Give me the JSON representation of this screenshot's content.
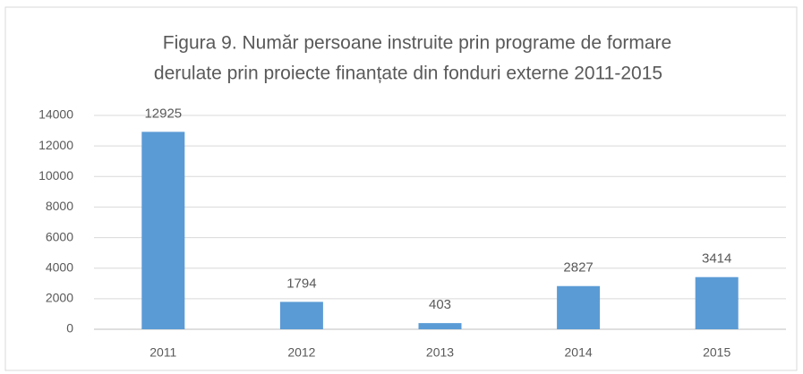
{
  "chart_data": {
    "type": "bar",
    "title": [
      "Figura 9. Număr persoane instruite prin programe de formare",
      "derulate prin proiecte finanțate din fonduri externe 2011-2015"
    ],
    "categories": [
      "2011",
      "2012",
      "2013",
      "2014",
      "2015"
    ],
    "values": [
      12925,
      1794,
      403,
      2827,
      3414
    ],
    "color": "#5b9bd5",
    "ylim": [
      0,
      14000
    ],
    "yticks": [
      0,
      2000,
      4000,
      6000,
      8000,
      10000,
      12000,
      14000
    ],
    "grid": true
  }
}
